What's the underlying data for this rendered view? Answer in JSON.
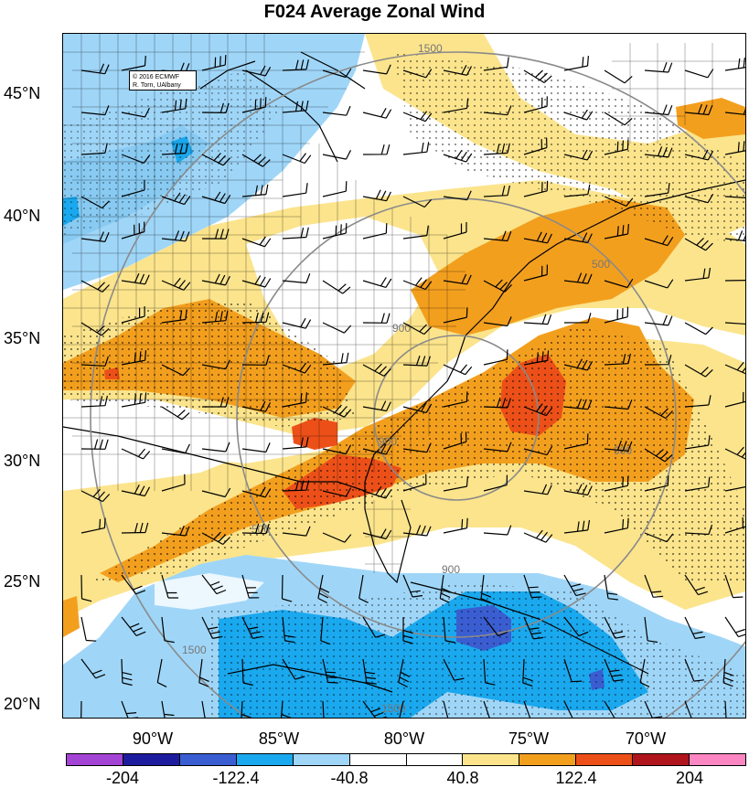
{
  "title": "F024 Average Zonal Wind",
  "credit": {
    "line1": "© 2016 ECMWF",
    "line2": "R. Torn, UAlbany"
  },
  "latitude_labels": [
    "45°N",
    "40°N",
    "35°N",
    "30°N",
    "25°N",
    "20°N"
  ],
  "longitude_labels": [
    "90°W",
    "85°W",
    "80°W",
    "75°W",
    "70°W"
  ],
  "colorbar": {
    "colors": [
      "#a444d4",
      "#1e1c9e",
      "#3a5ed2",
      "#1aa8ee",
      "#9fd6f8",
      "#ffffff",
      "#ffffff",
      "#fbe48c",
      "#f39f1e",
      "#ec5018",
      "#b0151d",
      "#fb86c2"
    ],
    "labels": [
      "-204",
      "-122.4",
      "-40.8",
      "40.8",
      "122.4",
      "204"
    ]
  },
  "range_rings": [
    "1500",
    "900",
    "500",
    "900",
    "1500",
    "1500",
    "900",
    "500",
    "900"
  ],
  "palette": {
    "light_blue": "#9fd6f8",
    "blue": "#1aa8ee",
    "dark_blue": "#3a5ed2",
    "navy": "#1e1c9e",
    "yellow": "#fbe48c",
    "orange": "#f39f1e",
    "red": "#ec5018"
  }
}
